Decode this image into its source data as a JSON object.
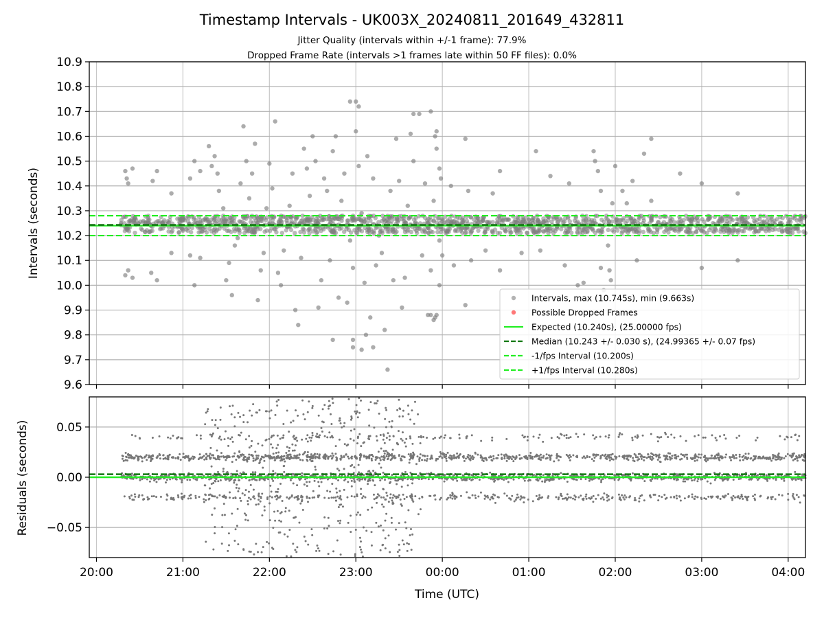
{
  "title": "Timestamp Intervals - UK003X_20240811_201649_432811",
  "subtitle_1": "Jitter Quality (intervals within +/-1 frame): 77.9%",
  "subtitle_2": "Dropped Frame Rate (intervals >1 frames late within 50 FF files): 0.0%",
  "colors": {
    "points_top": "#808080",
    "points_bottom": "#777777",
    "dropped": "#ff5555",
    "expected": "#22ee22",
    "median": "#117711",
    "fps_interval": "#22ee22",
    "grid": "#b0b0b0"
  },
  "chart_data": [
    {
      "type": "scatter",
      "id": "intervals",
      "ylabel": "Intervals (seconds)",
      "xlim": [
        "19:55",
        "04:12"
      ],
      "ylim": [
        9.6,
        10.9
      ],
      "yticks": [
        "9.6",
        "9.7",
        "9.8",
        "9.9",
        "10.0",
        "10.1",
        "10.2",
        "10.3",
        "10.4",
        "10.5",
        "10.6",
        "10.7",
        "10.8",
        "10.9"
      ],
      "grid": true,
      "data_span": [
        "20:17",
        "04:12"
      ],
      "dense_band": [
        10.21,
        10.28
      ],
      "reference_lines": [
        {
          "name": "Expected (10.240s), (25.00000 fps)",
          "y": 10.24,
          "style": "solid",
          "color": "#22ee22"
        },
        {
          "name": "Median (10.243 +/- 0.030 s), (24.99365 +/- 0.07 fps)",
          "y": 10.243,
          "style": "dashed",
          "color": "#117711"
        },
        {
          "name": "-1/fps Interval (10.200s)",
          "y": 10.2,
          "style": "dashed",
          "color": "#22ee22"
        },
        {
          "name": "+1/fps Interval (10.280s)",
          "y": 10.28,
          "style": "dashed",
          "color": "#22ee22"
        }
      ],
      "legend": {
        "placement": "lower-right",
        "entries": [
          {
            "label": "Intervals, max (10.745s), min (9.663s)",
            "kind": "marker",
            "color": "#a0a0a0"
          },
          {
            "label": "Possible Dropped Frames",
            "kind": "marker",
            "color": "#ff5555"
          },
          {
            "label": "Expected (10.240s), (25.00000 fps)",
            "kind": "line",
            "style": "solid",
            "color": "#22ee22"
          },
          {
            "label": "Median (10.243 +/- 0.030 s), (24.99365 +/- 0.07 fps)",
            "kind": "line",
            "style": "dashed",
            "color": "#117711"
          },
          {
            "label": "-1/fps Interval (10.200s)",
            "kind": "line",
            "style": "dashed",
            "color": "#22ee22"
          },
          {
            "label": "+1/fps Interval (10.280s)",
            "kind": "line",
            "style": "dashed",
            "color": "#22ee22"
          }
        ]
      },
      "outliers": [
        [
          "20:20",
          10.46
        ],
        [
          "20:21",
          10.43
        ],
        [
          "20:22",
          10.41
        ],
        [
          "20:20",
          10.04
        ],
        [
          "20:22",
          10.06
        ],
        [
          "20:25",
          10.47
        ],
        [
          "20:25",
          10.03
        ],
        [
          "20:39",
          10.42
        ],
        [
          "20:38",
          10.05
        ],
        [
          "20:42",
          10.46
        ],
        [
          "20:42",
          10.02
        ],
        [
          "20:52",
          10.37
        ],
        [
          "20:52",
          10.13
        ],
        [
          "21:05",
          10.43
        ],
        [
          "21:05",
          10.12
        ],
        [
          "21:08",
          10.5
        ],
        [
          "21:08",
          10.0
        ],
        [
          "21:12",
          10.46
        ],
        [
          "21:12",
          10.11
        ],
        [
          "21:18",
          10.56
        ],
        [
          "21:20",
          10.48
        ],
        [
          "21:22",
          10.52
        ],
        [
          "21:24",
          10.45
        ],
        [
          "21:25",
          10.38
        ],
        [
          "21:28",
          10.31
        ],
        [
          "21:30",
          10.02
        ],
        [
          "21:32",
          10.09
        ],
        [
          "21:34",
          9.96
        ],
        [
          "21:36",
          10.16
        ],
        [
          "21:38",
          10.19
        ],
        [
          "21:40",
          10.41
        ],
        [
          "21:42",
          10.64
        ],
        [
          "21:44",
          10.5
        ],
        [
          "21:46",
          10.35
        ],
        [
          "21:48",
          10.45
        ],
        [
          "21:50",
          10.57
        ],
        [
          "21:52",
          9.94
        ],
        [
          "21:54",
          10.06
        ],
        [
          "21:56",
          10.13
        ],
        [
          "21:58",
          10.31
        ],
        [
          "22:00",
          10.49
        ],
        [
          "22:02",
          10.39
        ],
        [
          "22:04",
          10.66
        ],
        [
          "22:06",
          10.05
        ],
        [
          "22:08",
          10.0
        ],
        [
          "22:10",
          10.14
        ],
        [
          "22:12",
          10.26
        ],
        [
          "22:14",
          10.32
        ],
        [
          "22:16",
          10.45
        ],
        [
          "22:18",
          9.9
        ],
        [
          "22:20",
          9.84
        ],
        [
          "22:22",
          10.11
        ],
        [
          "22:24",
          10.55
        ],
        [
          "22:26",
          10.47
        ],
        [
          "22:28",
          10.36
        ],
        [
          "22:30",
          10.6
        ],
        [
          "22:32",
          10.5
        ],
        [
          "22:34",
          9.91
        ],
        [
          "22:36",
          10.02
        ],
        [
          "22:38",
          10.43
        ],
        [
          "22:40",
          10.38
        ],
        [
          "22:42",
          10.1
        ],
        [
          "22:44",
          10.54
        ],
        [
          "22:46",
          10.6
        ],
        [
          "22:48",
          9.95
        ],
        [
          "22:50",
          10.34
        ],
        [
          "22:52",
          10.45
        ],
        [
          "22:54",
          9.93
        ],
        [
          "22:56",
          10.18
        ],
        [
          "22:58",
          10.07
        ],
        [
          "23:00",
          10.62
        ],
        [
          "23:02",
          10.48
        ],
        [
          "23:04",
          10.29
        ],
        [
          "23:06",
          10.01
        ],
        [
          "23:08",
          10.52
        ],
        [
          "23:10",
          9.87
        ],
        [
          "23:12",
          10.43
        ],
        [
          "23:14",
          10.08
        ],
        [
          "23:16",
          10.2
        ],
        [
          "23:18",
          10.13
        ],
        [
          "23:20",
          9.82
        ],
        [
          "23:22",
          9.66
        ],
        [
          "23:24",
          10.38
        ],
        [
          "23:26",
          10.02
        ],
        [
          "23:28",
          10.59
        ],
        [
          "23:30",
          10.42
        ],
        [
          "23:32",
          9.91
        ],
        [
          "23:34",
          10.03
        ],
        [
          "23:36",
          10.32
        ],
        [
          "23:38",
          10.61
        ],
        [
          "23:40",
          10.5
        ],
        [
          "23:42",
          10.22
        ],
        [
          "23:44",
          10.69
        ],
        [
          "23:46",
          10.12
        ],
        [
          "23:48",
          10.41
        ],
        [
          "23:50",
          9.88
        ],
        [
          "23:52",
          10.06
        ],
        [
          "23:54",
          10.34
        ],
        [
          "23:56",
          10.55
        ],
        [
          "23:58",
          10.18
        ],
        [
          "22:56",
          10.74
        ],
        [
          "23:00",
          10.74
        ],
        [
          "23:02",
          10.72
        ],
        [
          "22:58",
          9.78
        ],
        [
          "22:44",
          9.78
        ],
        [
          "22:58",
          9.75
        ],
        [
          "23:04",
          9.74
        ],
        [
          "23:07",
          9.8
        ],
        [
          "23:12",
          9.75
        ],
        [
          "23:40",
          10.69
        ],
        [
          "23:52",
          10.7
        ],
        [
          "23:55",
          10.6
        ],
        [
          "23:56",
          10.62
        ],
        [
          "23:52",
          9.88
        ],
        [
          "23:54",
          9.86
        ],
        [
          "23:56",
          9.88
        ],
        [
          "23:55",
          9.87
        ],
        [
          "23:58",
          10.47
        ],
        [
          "23:59",
          10.43
        ],
        [
          "23:58",
          10.0
        ],
        [
          "24:00",
          10.12
        ],
        [
          "24:06",
          10.4
        ],
        [
          "24:08",
          10.08
        ],
        [
          "24:16",
          10.59
        ],
        [
          "24:18",
          10.38
        ],
        [
          "24:16",
          9.92
        ],
        [
          "24:20",
          10.1
        ],
        [
          "24:30",
          10.14
        ],
        [
          "24:35",
          10.37
        ],
        [
          "24:40",
          10.46
        ],
        [
          "24:40",
          10.06
        ],
        [
          "24:55",
          10.13
        ],
        [
          "25:05",
          10.54
        ],
        [
          "25:08",
          10.14
        ],
        [
          "25:15",
          10.44
        ],
        [
          "25:25",
          10.08
        ],
        [
          "25:28",
          10.41
        ],
        [
          "25:34",
          10.0
        ],
        [
          "25:38",
          10.01
        ],
        [
          "25:45",
          10.54
        ],
        [
          "25:46",
          10.5
        ],
        [
          "25:48",
          10.46
        ],
        [
          "25:50",
          10.38
        ],
        [
          "25:50",
          10.07
        ],
        [
          "25:52",
          9.98
        ],
        [
          "25:55",
          10.16
        ],
        [
          "25:56",
          10.06
        ],
        [
          "25:57",
          10.02
        ],
        [
          "25:58",
          10.33
        ],
        [
          "26:00",
          10.48
        ],
        [
          "26:05",
          10.38
        ],
        [
          "26:08",
          10.33
        ],
        [
          "26:12",
          10.42
        ],
        [
          "26:15",
          10.1
        ],
        [
          "26:20",
          10.53
        ],
        [
          "26:25",
          10.59
        ],
        [
          "26:25",
          10.34
        ],
        [
          "26:45",
          10.45
        ],
        [
          "27:00",
          10.41
        ],
        [
          "27:00",
          10.07
        ],
        [
          "27:25",
          10.37
        ],
        [
          "27:25",
          10.1
        ]
      ],
      "dropped_frames": []
    },
    {
      "type": "scatter",
      "id": "residuals",
      "xlabel": "Time (UTC)",
      "ylabel": "Residuals (seconds)",
      "xlim": [
        "19:55",
        "04:12"
      ],
      "ylim": [
        -0.08,
        0.08
      ],
      "yticks": [
        "−0.05",
        "0.00",
        "0.05"
      ],
      "ytick_values": [
        -0.05,
        0.0,
        0.05
      ],
      "xticks": [
        "20:00",
        "21:00",
        "22:00",
        "23:00",
        "00:00",
        "01:00",
        "02:00",
        "03:00",
        "04:00"
      ],
      "grid": true,
      "data_span": [
        "20:17",
        "04:12"
      ],
      "bands": [
        0.0,
        0.02,
        -0.02,
        0.04
      ],
      "scatter_window": [
        "21:15",
        "23:45"
      ],
      "zero_line": {
        "y": 0.0,
        "style": "solid",
        "color": "#22ee22"
      },
      "median_line": {
        "y": 0.003,
        "style": "dashed",
        "color": "#117711"
      }
    }
  ]
}
